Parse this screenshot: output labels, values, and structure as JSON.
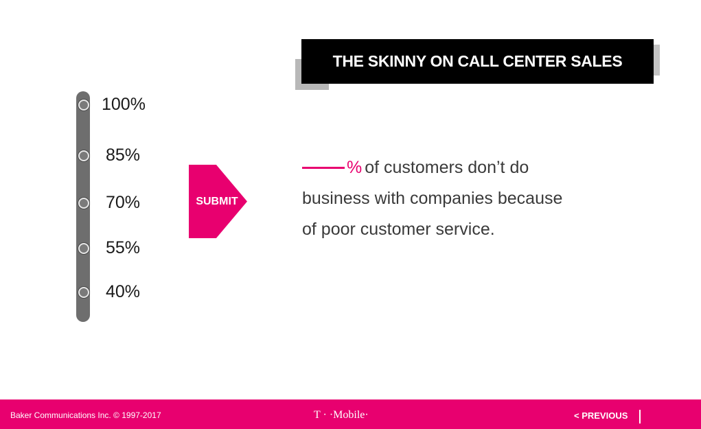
{
  "title": "THE SKINNY ON CALL CENTER SALES",
  "slider": {
    "options": [
      "100%",
      "85%",
      "70%",
      "55%",
      "40%"
    ]
  },
  "submit_label": "SUBMIT",
  "question": {
    "percent_sign": "%",
    "line1": "of customers don’t do",
    "line2": "business with companies because",
    "line3": "of poor customer service."
  },
  "footer": {
    "copyright": "Baker Communications Inc. © 1997-2017",
    "brand": "T · ·Mobile·",
    "previous_label": "< PREVIOUS"
  },
  "colors": {
    "accent": "#e8006f",
    "title_bg": "#000000",
    "track": "#6e6e6e"
  }
}
